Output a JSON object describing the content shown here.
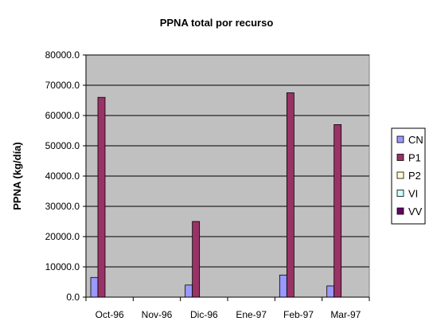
{
  "chart_data": {
    "type": "bar",
    "title": "PPNA total por recurso",
    "xlabel": "",
    "ylabel": "PPNA (kg/día)",
    "ylim": [
      0,
      80000
    ],
    "yticks": [
      "0.0",
      "10000.0",
      "20000.0",
      "30000.0",
      "40000.0",
      "50000.0",
      "60000.0",
      "70000.0",
      "80000.0"
    ],
    "grid": true,
    "legend_position": "right",
    "categories": [
      "Oct-96",
      "Nov-96",
      "Dic-96",
      "Ene-97",
      "Feb-97",
      "Mar-97"
    ],
    "series": [
      {
        "name": "CN",
        "color": "#9999ff",
        "values": [
          6500,
          0,
          4000,
          0,
          7300,
          3700
        ]
      },
      {
        "name": "P1",
        "color": "#993366",
        "values": [
          66000,
          0,
          25000,
          0,
          67500,
          57000
        ]
      },
      {
        "name": "P2",
        "color": "#ffffcc",
        "values": [
          0,
          0,
          0,
          0,
          0,
          0
        ]
      },
      {
        "name": "VI",
        "color": "#ccffff",
        "values": [
          0,
          0,
          0,
          0,
          0,
          0
        ]
      },
      {
        "name": "VV",
        "color": "#660066",
        "values": [
          0,
          0,
          0,
          0,
          0,
          0
        ]
      }
    ],
    "plot_background": "#c0c0c0"
  }
}
